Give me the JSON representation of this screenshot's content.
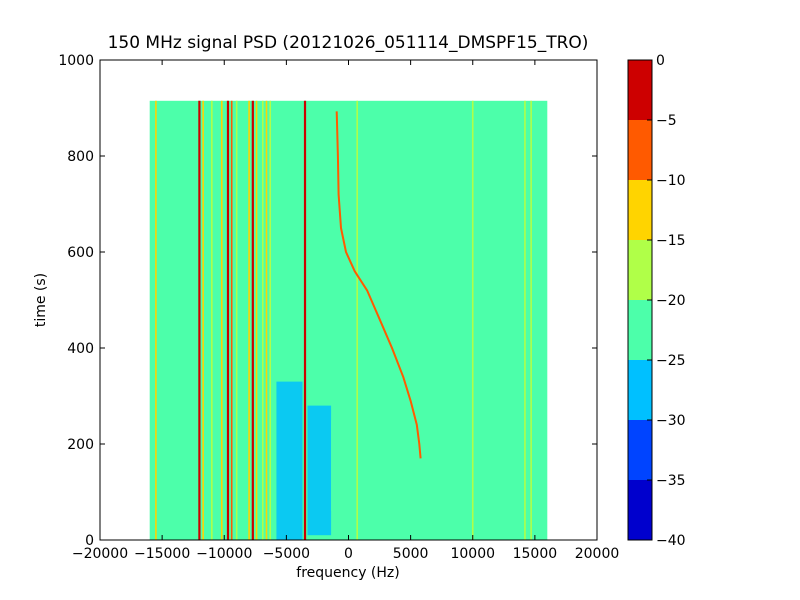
{
  "chart_data": {
    "type": "heatmap",
    "title": "150 MHz signal PSD (20121026_051114_DMSPF15_TRO)",
    "xlabel": "frequency (Hz)",
    "ylabel": "time (s)",
    "xlim": [
      -20000,
      20000
    ],
    "ylim": [
      0,
      1000
    ],
    "xticks": [
      "−20000",
      "−15000",
      "−10000",
      "−5000",
      "0",
      "5000",
      "10000",
      "15000",
      "20000"
    ],
    "xtick_values": [
      -20000,
      -15000,
      -10000,
      -5000,
      0,
      5000,
      10000,
      15000,
      20000
    ],
    "yticks": [
      "0",
      "200",
      "400",
      "600",
      "800",
      "1000"
    ],
    "ytick_values": [
      0,
      200,
      400,
      600,
      800,
      1000
    ],
    "data_extent": {
      "x": [
        -16000,
        16000
      ],
      "y": [
        0,
        915
      ]
    },
    "background_level": -22.5,
    "background_color": "#4cffaa",
    "colorbar": {
      "levels": [
        -40,
        -35,
        -30,
        -25,
        -20,
        -15,
        -10,
        -5,
        0
      ],
      "tick_labels": [
        "0",
        "−5",
        "−10",
        "−15",
        "−20",
        "−25",
        "−30",
        "−35",
        "−40"
      ],
      "colors": [
        "#0000cd",
        "#0044ff",
        "#00c0ff",
        "#4cffaa",
        "#b0ff48",
        "#ffd400",
        "#ff5a00",
        "#cd0000"
      ]
    },
    "steady_lines": [
      {
        "freq": -15500,
        "level": -12,
        "t0": 0,
        "t1": 915
      },
      {
        "freq": -12000,
        "level": -4,
        "t0": 0,
        "t1": 915
      },
      {
        "freq": -11700,
        "level": -12,
        "t0": 0,
        "t1": 915
      },
      {
        "freq": -11000,
        "level": -16,
        "t0": 0,
        "t1": 915
      },
      {
        "freq": -10200,
        "level": -12,
        "t0": 0,
        "t1": 915
      },
      {
        "freq": -9700,
        "level": -4,
        "t0": 0,
        "t1": 915
      },
      {
        "freq": -9400,
        "level": -8,
        "t0": 0,
        "t1": 915
      },
      {
        "freq": -9000,
        "level": -16,
        "t0": 0,
        "t1": 915
      },
      {
        "freq": -8000,
        "level": -12,
        "t0": 0,
        "t1": 915
      },
      {
        "freq": -7700,
        "level": -4,
        "t0": 0,
        "t1": 915
      },
      {
        "freq": -7400,
        "level": -12,
        "t0": 0,
        "t1": 915
      },
      {
        "freq": -6900,
        "level": -16,
        "t0": 0,
        "t1": 915
      },
      {
        "freq": -6600,
        "level": -12,
        "t0": 0,
        "t1": 915
      },
      {
        "freq": -6300,
        "level": -16,
        "t0": 0,
        "t1": 915
      },
      {
        "freq": -3500,
        "level": -4,
        "t0": 0,
        "t1": 915
      },
      {
        "freq": 700,
        "level": -16,
        "t0": 0,
        "t1": 915
      },
      {
        "freq": 10000,
        "level": -16,
        "t0": 0,
        "t1": 915
      },
      {
        "freq": 14200,
        "level": -18,
        "t0": 0,
        "t1": 915
      },
      {
        "freq": 14700,
        "level": -19,
        "t0": 0,
        "t1": 915
      }
    ],
    "doppler_curve": {
      "level": -10,
      "points": [
        [
          -950,
          893
        ],
        [
          -850,
          800
        ],
        [
          -800,
          720
        ],
        [
          -600,
          650
        ],
        [
          -200,
          600
        ],
        [
          500,
          560
        ],
        [
          1500,
          520
        ],
        [
          2500,
          460
        ],
        [
          3500,
          400
        ],
        [
          4400,
          340
        ],
        [
          5000,
          290
        ],
        [
          5500,
          240
        ],
        [
          5700,
          200
        ],
        [
          5800,
          170
        ]
      ]
    },
    "noise_patches": [
      {
        "x0": -3300,
        "x1": -1400,
        "y0": 10,
        "y1": 280,
        "level": -27
      },
      {
        "x0": -5800,
        "x1": -3700,
        "y0": 0,
        "y1": 330,
        "level": -27
      },
      {
        "x0": -1400,
        "x1": -1000,
        "y0": 60,
        "y1": 250,
        "level": -24
      }
    ]
  }
}
